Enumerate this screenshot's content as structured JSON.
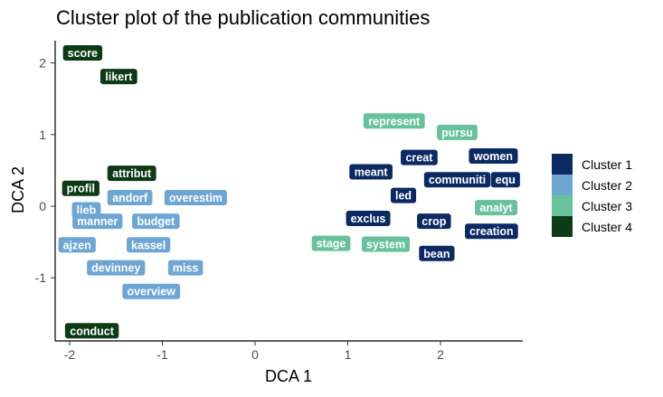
{
  "chart_data": {
    "type": "scatter",
    "title": "Cluster plot of the publication communities",
    "xlabel": "DCA 1",
    "ylabel": "DCA 2",
    "xlim": [
      -2.15,
      2.9
    ],
    "ylim": [
      -1.85,
      2.3
    ],
    "xticks": [
      -2,
      -1,
      0,
      1,
      2
    ],
    "xtick_labels": [
      "-2",
      "-1",
      "0",
      "1",
      "2"
    ],
    "yticks": [
      2,
      1,
      0,
      -1
    ],
    "ytick_labels": [
      "2",
      "1",
      "0",
      "-1"
    ],
    "grid": false,
    "legend_position": "right",
    "series": [
      {
        "name": "Cluster 1",
        "color": "#0b2a63",
        "points": [
          {
            "label": "meant",
            "x": 1.25,
            "y": 0.48
          },
          {
            "label": "creat",
            "x": 1.77,
            "y": 0.68
          },
          {
            "label": "women",
            "x": 2.57,
            "y": 0.7
          },
          {
            "label": "communiti",
            "x": 2.18,
            "y": 0.37
          },
          {
            "label": "equ",
            "x": 2.7,
            "y": 0.37
          },
          {
            "label": "led",
            "x": 1.6,
            "y": 0.15
          },
          {
            "label": "exclus",
            "x": 1.22,
            "y": -0.17
          },
          {
            "label": "crop",
            "x": 1.93,
            "y": -0.21
          },
          {
            "label": "creation",
            "x": 2.55,
            "y": -0.35
          },
          {
            "label": "bean",
            "x": 1.96,
            "y": -0.66
          }
        ]
      },
      {
        "name": "Cluster 2",
        "color": "#6ea6d3",
        "points": [
          {
            "label": "andorf",
            "x": -1.35,
            "y": 0.12
          },
          {
            "label": "overestim",
            "x": -0.64,
            "y": 0.12
          },
          {
            "label": "lieb",
            "x": -1.82,
            "y": -0.05
          },
          {
            "label": "manner",
            "x": -1.7,
            "y": -0.21
          },
          {
            "label": "budget",
            "x": -1.07,
            "y": -0.21
          },
          {
            "label": "ajzen",
            "x": -1.92,
            "y": -0.54
          },
          {
            "label": "kassel",
            "x": -1.15,
            "y": -0.54
          },
          {
            "label": "devinney",
            "x": -1.5,
            "y": -0.86
          },
          {
            "label": "miss",
            "x": -0.75,
            "y": -0.86
          },
          {
            "label": "overview",
            "x": -1.12,
            "y": -1.19
          }
        ]
      },
      {
        "name": "Cluster 3",
        "color": "#66c19c",
        "points": [
          {
            "label": "represent",
            "x": 1.5,
            "y": 1.19
          },
          {
            "label": "pursu",
            "x": 2.18,
            "y": 1.03
          },
          {
            "label": "analyt",
            "x": 2.6,
            "y": -0.02
          },
          {
            "label": "stage",
            "x": 0.82,
            "y": -0.52
          },
          {
            "label": "system",
            "x": 1.41,
            "y": -0.53
          }
        ]
      },
      {
        "name": "Cluster 4",
        "color": "#0c3b16",
        "points": [
          {
            "label": "score",
            "x": -1.86,
            "y": 2.14
          },
          {
            "label": "likert",
            "x": -1.47,
            "y": 1.81
          },
          {
            "label": "attribut",
            "x": -1.33,
            "y": 0.46
          },
          {
            "label": "profil",
            "x": -1.88,
            "y": 0.25
          },
          {
            "label": "conduct",
            "x": -1.76,
            "y": -1.74
          }
        ]
      }
    ]
  }
}
